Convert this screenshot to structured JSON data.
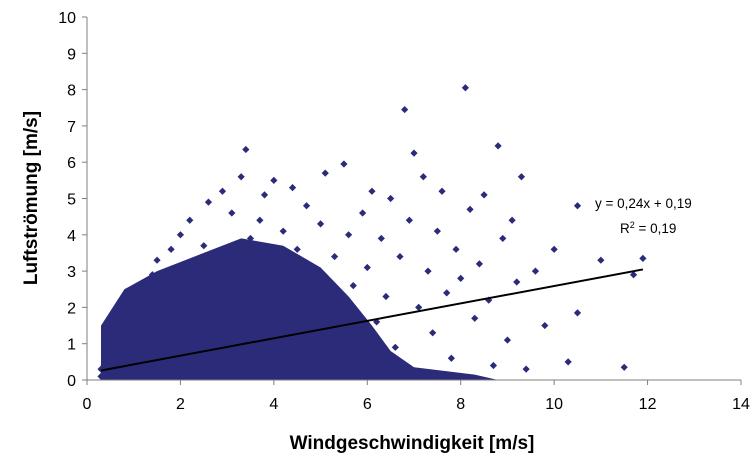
{
  "chart_data": {
    "type": "scatter",
    "title": "",
    "xlabel": "Windgeschwindigkeit [m/s]",
    "ylabel": "Luftströmung [m/s]",
    "xlim": [
      0,
      14
    ],
    "ylim": [
      0,
      10
    ],
    "xticks": [
      "0",
      "2",
      "4",
      "6",
      "8",
      "10",
      "12",
      "14"
    ],
    "yticks": [
      "0",
      "1",
      "2",
      "3",
      "4",
      "5",
      "6",
      "7",
      "8",
      "9",
      "10"
    ],
    "grid": false,
    "legend": "none",
    "marker": "diamond",
    "marker_color": "#2B2B7A",
    "series": [
      {
        "points": [
          [
            0.3,
            0.1
          ],
          [
            0.3,
            0.3
          ],
          [
            0.4,
            0.6
          ],
          [
            0.5,
            0.9
          ],
          [
            0.5,
            1.5
          ],
          [
            0.6,
            1.2
          ],
          [
            0.7,
            0.4
          ],
          [
            0.8,
            1.8
          ],
          [
            0.9,
            0.2
          ],
          [
            1.0,
            2.1
          ],
          [
            1.0,
            1.0
          ],
          [
            1.1,
            2.6
          ],
          [
            1.2,
            1.6
          ],
          [
            1.3,
            0.5
          ],
          [
            1.4,
            2.9
          ],
          [
            1.5,
            3.3
          ],
          [
            1.5,
            1.3
          ],
          [
            1.6,
            2.2
          ],
          [
            1.7,
            0.3
          ],
          [
            1.8,
            3.6
          ],
          [
            1.9,
            1.7
          ],
          [
            2.0,
            4.0
          ],
          [
            2.0,
            2.5
          ],
          [
            2.1,
            0.8
          ],
          [
            2.2,
            4.4
          ],
          [
            2.3,
            3.1
          ],
          [
            2.4,
            1.2
          ],
          [
            2.5,
            3.7
          ],
          [
            2.6,
            4.9
          ],
          [
            2.7,
            2.0
          ],
          [
            2.8,
            0.4
          ],
          [
            2.9,
            5.2
          ],
          [
            3.0,
            3.4
          ],
          [
            3.0,
            1.6
          ],
          [
            3.1,
            4.6
          ],
          [
            3.2,
            2.8
          ],
          [
            3.3,
            5.6
          ],
          [
            3.4,
            6.35
          ],
          [
            3.5,
            3.9
          ],
          [
            3.5,
            0.6
          ],
          [
            3.6,
            2.3
          ],
          [
            3.7,
            4.4
          ],
          [
            3.8,
            5.1
          ],
          [
            3.9,
            1.4
          ],
          [
            4.0,
            3.2
          ],
          [
            4.0,
            5.5
          ],
          [
            4.1,
            2.6
          ],
          [
            4.2,
            4.1
          ],
          [
            4.3,
            0.9
          ],
          [
            4.4,
            5.3
          ],
          [
            4.5,
            3.6
          ],
          [
            4.6,
            1.9
          ],
          [
            4.7,
            4.8
          ],
          [
            4.8,
            2.9
          ],
          [
            4.9,
            0.5
          ],
          [
            5.0,
            4.3
          ],
          [
            5.1,
            5.7
          ],
          [
            5.2,
            2.1
          ],
          [
            5.3,
            3.4
          ],
          [
            5.4,
            1.2
          ],
          [
            5.5,
            5.95
          ],
          [
            5.6,
            4.0
          ],
          [
            5.7,
            2.6
          ],
          [
            5.8,
            0.7
          ],
          [
            5.9,
            4.6
          ],
          [
            6.0,
            3.1
          ],
          [
            6.1,
            5.2
          ],
          [
            6.2,
            1.6
          ],
          [
            6.3,
            3.9
          ],
          [
            6.4,
            2.3
          ],
          [
            6.5,
            5.0
          ],
          [
            6.6,
            0.9
          ],
          [
            6.7,
            3.4
          ],
          [
            6.8,
            7.45
          ],
          [
            6.9,
            4.4
          ],
          [
            7.0,
            6.25
          ],
          [
            7.1,
            2.0
          ],
          [
            7.2,
            5.6
          ],
          [
            7.3,
            3.0
          ],
          [
            7.4,
            1.3
          ],
          [
            7.5,
            4.1
          ],
          [
            7.6,
            5.2
          ],
          [
            7.7,
            2.4
          ],
          [
            7.8,
            0.6
          ],
          [
            7.9,
            3.6
          ],
          [
            8.0,
            2.8
          ],
          [
            8.1,
            8.05
          ],
          [
            8.2,
            4.7
          ],
          [
            8.3,
            1.7
          ],
          [
            8.4,
            3.2
          ],
          [
            8.5,
            5.1
          ],
          [
            8.6,
            2.2
          ],
          [
            8.7,
            0.4
          ],
          [
            8.8,
            6.45
          ],
          [
            8.9,
            3.9
          ],
          [
            9.0,
            1.1
          ],
          [
            9.1,
            4.4
          ],
          [
            9.2,
            2.7
          ],
          [
            9.3,
            5.6
          ],
          [
            9.4,
            0.3
          ],
          [
            9.6,
            3.0
          ],
          [
            9.8,
            1.5
          ],
          [
            10.0,
            3.6
          ],
          [
            10.3,
            0.5
          ],
          [
            10.5,
            4.8
          ],
          [
            10.5,
            1.85
          ],
          [
            11.0,
            3.3
          ],
          [
            11.5,
            0.35
          ],
          [
            11.7,
            2.9
          ],
          [
            11.9,
            3.35
          ]
        ]
      }
    ],
    "trendline": {
      "equation": "y = 0,24x + 0,19",
      "r2_label": "R",
      "r2_exp": "2",
      "r2_value": " = 0,19",
      "slope": 0.24,
      "intercept": 0.19,
      "x_range": [
        0.3,
        11.9
      ]
    }
  }
}
